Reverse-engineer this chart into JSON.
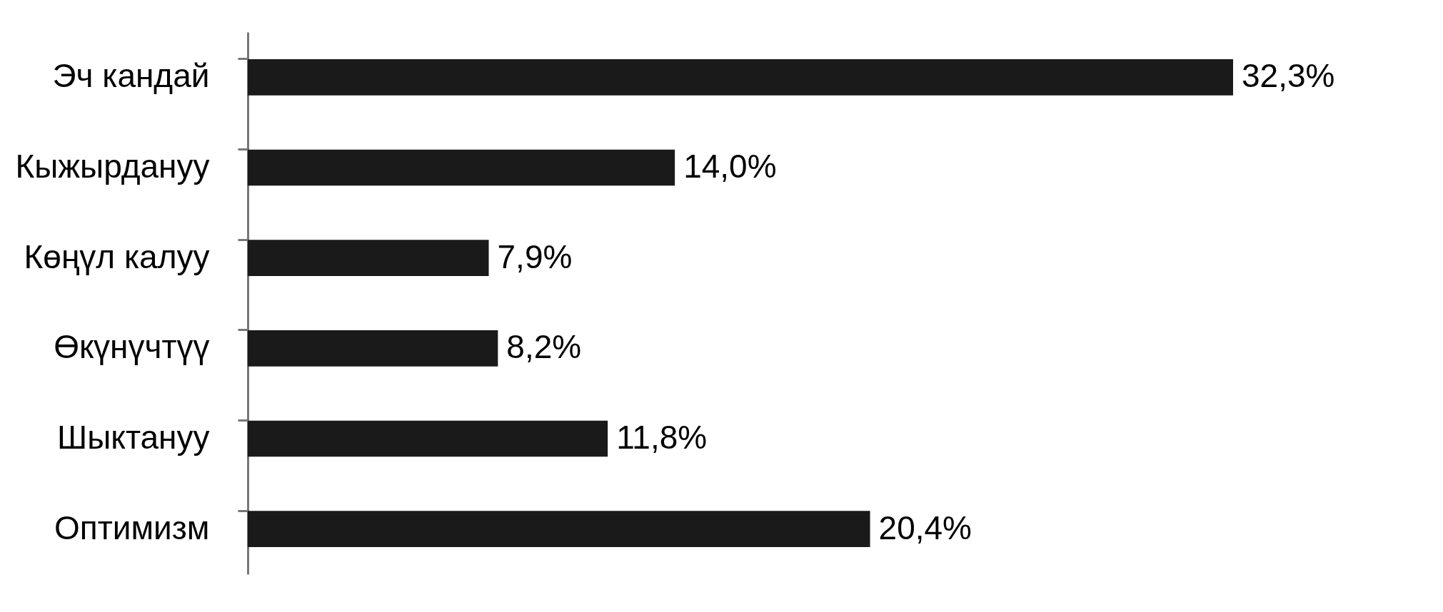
{
  "chart_data": {
    "type": "bar",
    "orientation": "horizontal",
    "categories": [
      "Эч кандай",
      "Кыжырдануу",
      "Көңүл калуу",
      "Өкүнүчтүү",
      "Шыктануу",
      "Оптимизм"
    ],
    "values": [
      32.3,
      14.0,
      7.9,
      8.2,
      11.8,
      20.4
    ],
    "value_labels": [
      "32,3%",
      "14,0%",
      "7,9%",
      "8,2%",
      "11,8%",
      "20,4%"
    ],
    "color": "#1a1a1a",
    "tick_labels": "y"
  }
}
